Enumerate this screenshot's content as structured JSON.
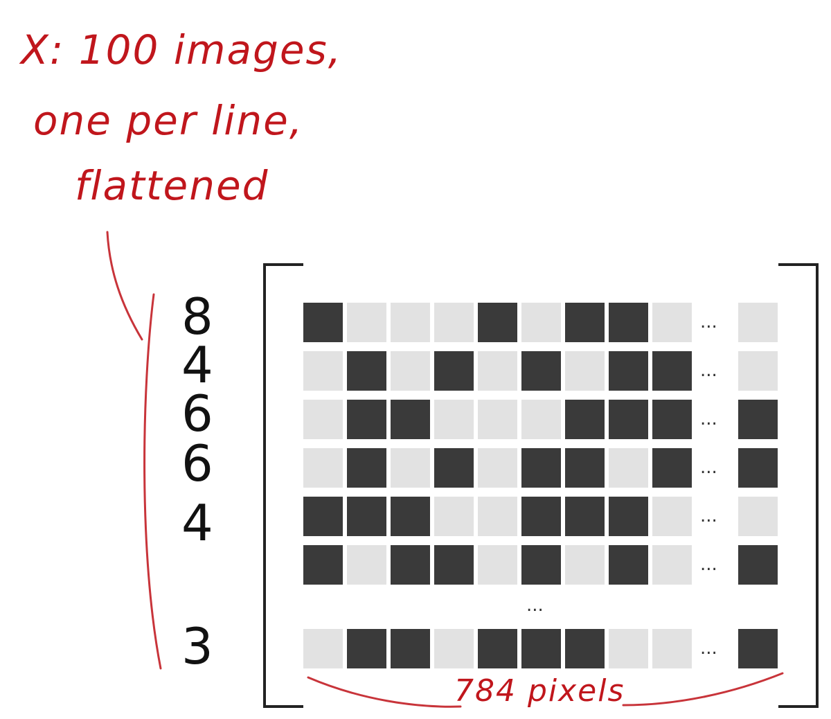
{
  "annotation": {
    "lines": [
      "X: 100 images,",
      "one per line,",
      "flattened"
    ]
  },
  "digits": [
    "8",
    "4",
    "6",
    "6",
    "4",
    "3"
  ],
  "matrix": {
    "rows": [
      [
        1,
        0,
        0,
        0,
        1,
        0,
        1,
        1,
        0,
        0
      ],
      [
        0,
        1,
        0,
        1,
        0,
        1,
        0,
        1,
        1,
        0
      ],
      [
        0,
        1,
        1,
        0,
        0,
        0,
        1,
        1,
        1,
        1
      ],
      [
        0,
        1,
        0,
        1,
        0,
        1,
        1,
        0,
        1,
        1
      ],
      [
        1,
        1,
        1,
        0,
        0,
        1,
        1,
        1,
        0,
        0
      ],
      [
        1,
        0,
        1,
        1,
        0,
        1,
        0,
        1,
        0,
        1
      ]
    ],
    "last_row": [
      0,
      1,
      1,
      0,
      1,
      1,
      1,
      0,
      0,
      1
    ],
    "ellipsis": "...",
    "colors": {
      "dark": "#3a3a3a",
      "light": "#e2e2e2"
    }
  },
  "pixels_label": "784 pixels"
}
